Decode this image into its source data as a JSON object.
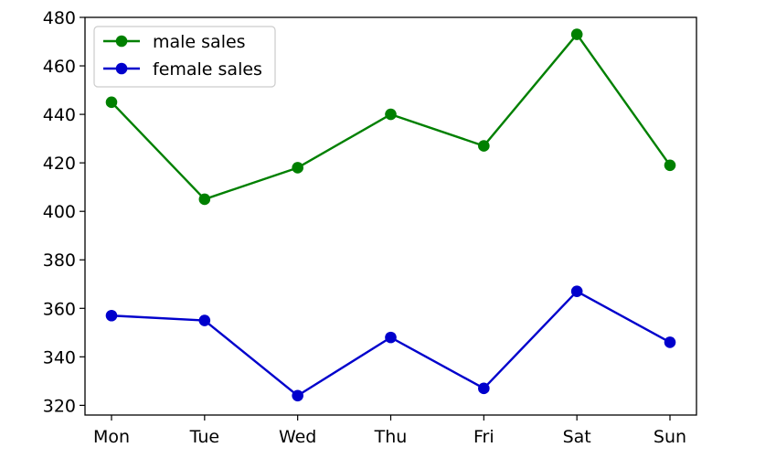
{
  "chart_data": {
    "type": "line",
    "title": "",
    "xlabel": "",
    "ylabel": "",
    "categories": [
      "Mon",
      "Tue",
      "Wed",
      "Thu",
      "Fri",
      "Sat",
      "Sun"
    ],
    "ylim": [
      316,
      480
    ],
    "yticks": [
      320,
      340,
      360,
      380,
      400,
      420,
      440,
      460,
      480
    ],
    "grid": false,
    "legend_position": "upper-left",
    "series": [
      {
        "name": "male sales",
        "color": "#008000",
        "marker": "circle",
        "values": [
          445,
          405,
          418,
          440,
          427,
          473,
          419
        ]
      },
      {
        "name": "female sales",
        "color": "#0000cc",
        "marker": "circle",
        "values": [
          357,
          355,
          324,
          348,
          327,
          367,
          346
        ]
      }
    ]
  }
}
